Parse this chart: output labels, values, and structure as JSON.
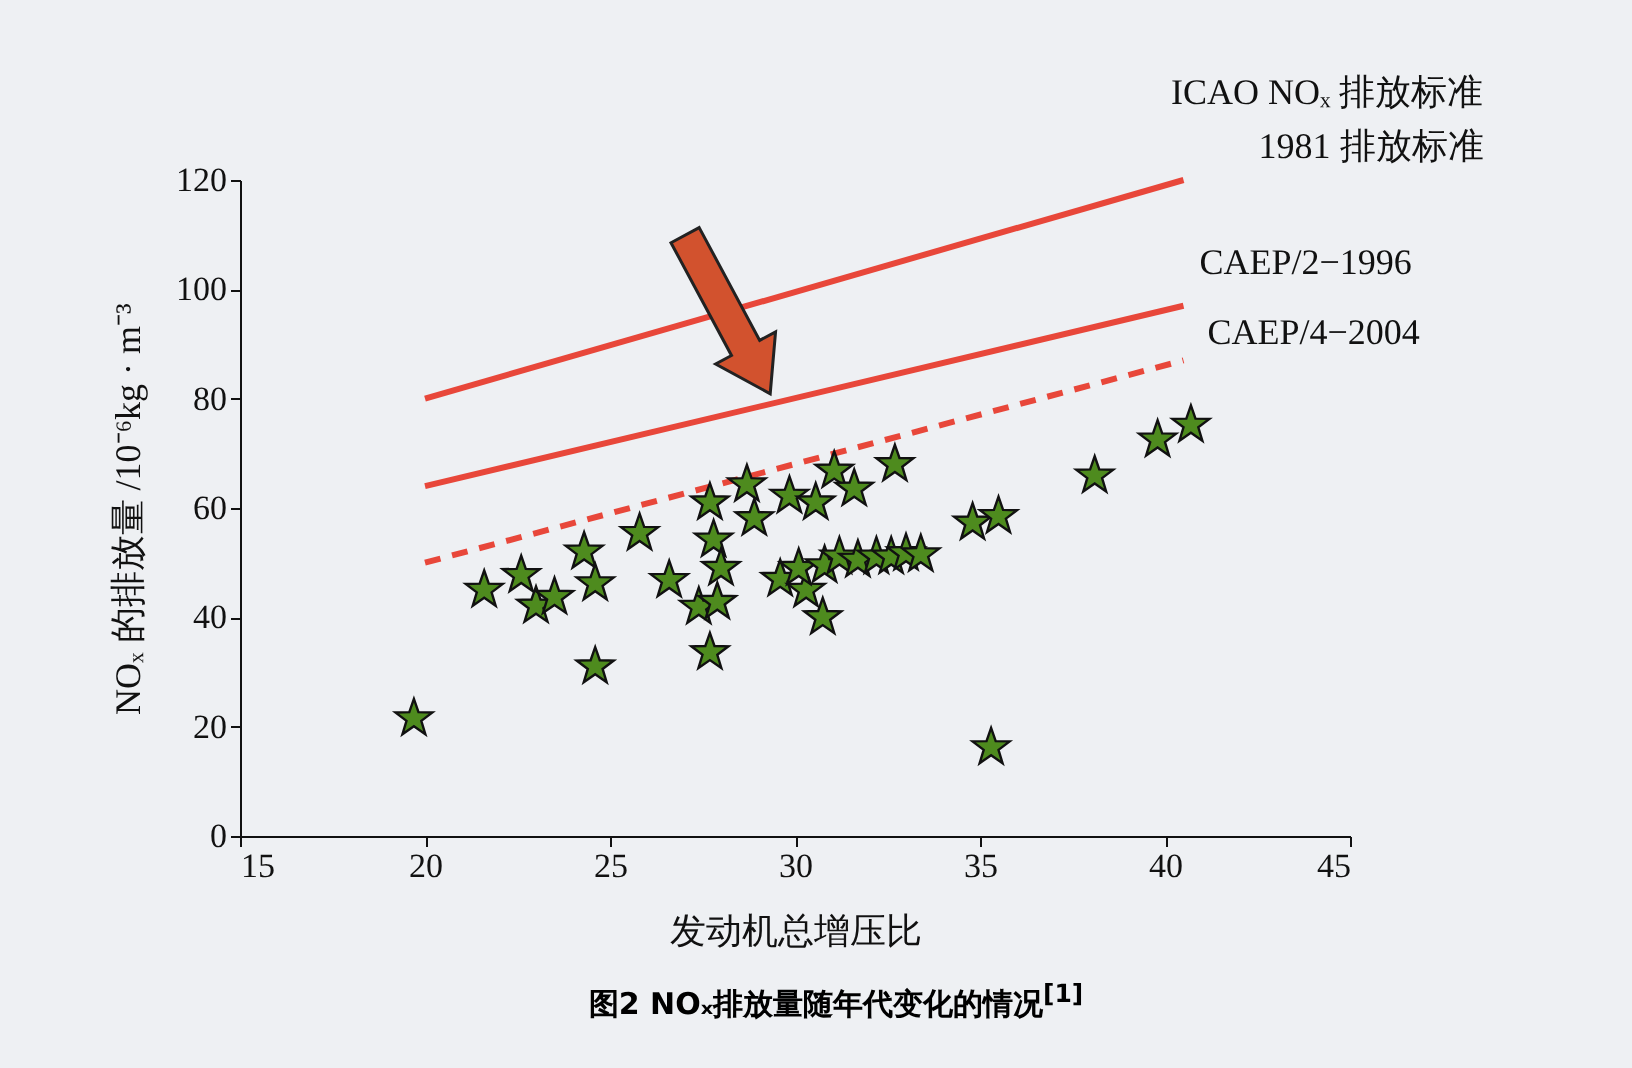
{
  "chart_data": {
    "type": "scatter",
    "title": "图2 NOₓ排放量随年代变化的情况$^{[1]}$",
    "xlabel": "发动机总增压比",
    "ylabel": "NOₓ 的排放量 /10⁻⁶kg · m⁻³",
    "xlim": [
      15,
      45
    ],
    "ylim": [
      0,
      120
    ],
    "xticks": [
      15,
      20,
      25,
      30,
      35,
      40,
      45
    ],
    "yticks": [
      0,
      20,
      40,
      60,
      80,
      100,
      120
    ],
    "grid": false,
    "series": [
      {
        "marker": "star",
        "color": "#4e8b1e",
        "x": [
          19.7,
          21.6,
          22.6,
          23.0,
          23.5,
          24.3,
          24.6,
          24.6,
          25.8,
          26.6,
          27.7,
          28.7,
          28.9,
          27.8,
          28.0,
          27.4,
          27.9,
          27.7,
          29.6,
          29.85,
          30.56,
          31.06,
          31.6,
          32.7,
          34.8,
          35.5,
          38.1,
          39.8,
          40.7,
          35.3,
          30.3,
          30.75,
          30.1,
          30.8,
          31.2,
          31.7,
          32.2,
          32.6,
          33.0,
          33.4
        ],
        "values": [
          21.5,
          45,
          47.7,
          42.1,
          43.7,
          52,
          46.2,
          31,
          55.4,
          46.8,
          61,
          64.3,
          58.1,
          54.2,
          49,
          41.9,
          42.8,
          33.6,
          47,
          62.2,
          61,
          66.8,
          63.5,
          68,
          57.3,
          58.5,
          65.9,
          72.5,
          75.2,
          16.2,
          45,
          40,
          49,
          49.5,
          51.1,
          50.5,
          51.1,
          51.1,
          51.7,
          51.5
        ]
      },
      {
        "type": "line",
        "name": "ICAO NOₓ 排放标准\n1981 排放标准",
        "color": "#e8473a",
        "line_style": "solid",
        "x": [
          20,
          40.5
        ],
        "values": [
          80,
          120
        ]
      },
      {
        "type": "line",
        "name": "CAEP/2−1996",
        "color": "#e8473a",
        "line_style": "solid",
        "x": [
          20,
          40.5
        ],
        "values": [
          64,
          97
        ]
      },
      {
        "type": "line",
        "name": "CAEP/4−2004",
        "color": "#e8473a",
        "line_style": "dashed",
        "x": [
          20,
          40.5
        ],
        "values": [
          50,
          87
        ]
      }
    ]
  }
}
